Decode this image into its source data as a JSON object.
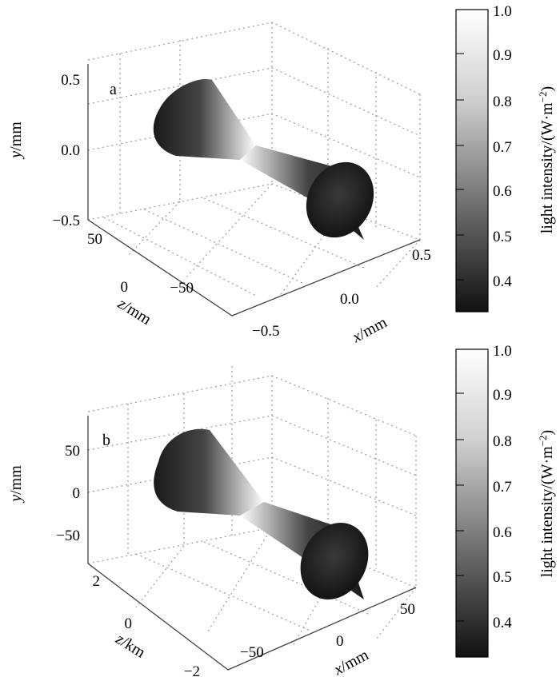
{
  "colors": {
    "dark": "#1a1a1a",
    "bright": "#ffffff",
    "grid": "#9a9a9a"
  },
  "chart_data": [
    {
      "type": "surface3d",
      "panel_label": "a",
      "x": {
        "label_var": "x",
        "label_unit": "/mm",
        "ticks": [
          "−0.5",
          "0.0",
          "0.5"
        ]
      },
      "y": {
        "label_var": "y",
        "label_unit": "/mm",
        "ticks": [
          "−0.5",
          "0.0",
          "0.5"
        ]
      },
      "z": {
        "label_var": "z",
        "label_unit": "/mm",
        "ticks": [
          "50",
          "0",
          "−50"
        ]
      },
      "colorbar": {
        "ticks": [
          "1.0",
          "0.9",
          "0.8",
          "0.7",
          "0.6",
          "0.5",
          "0.4"
        ],
        "range": [
          0.33,
          1.0
        ],
        "label": "light intensity/(W·m",
        "label_sup": "−2",
        "label_close": ")"
      }
    },
    {
      "type": "surface3d",
      "panel_label": "b",
      "x": {
        "label_var": "x",
        "label_unit": "/mm",
        "ticks": [
          "−50",
          "0",
          "50"
        ]
      },
      "y": {
        "label_var": "y",
        "label_unit": "/mm",
        "ticks": [
          "50",
          "0",
          "−50"
        ]
      },
      "z": {
        "label_var": "z",
        "label_unit": "/km",
        "ticks": [
          "2",
          "0",
          "−2"
        ]
      },
      "colorbar": {
        "ticks": [
          "1.0",
          "0.9",
          "0.8",
          "0.7",
          "0.6",
          "0.5",
          "0.4"
        ],
        "range": [
          0.33,
          1.0
        ],
        "label": "light intensity/(W·m",
        "label_sup": "−2",
        "label_close": ")"
      }
    }
  ]
}
